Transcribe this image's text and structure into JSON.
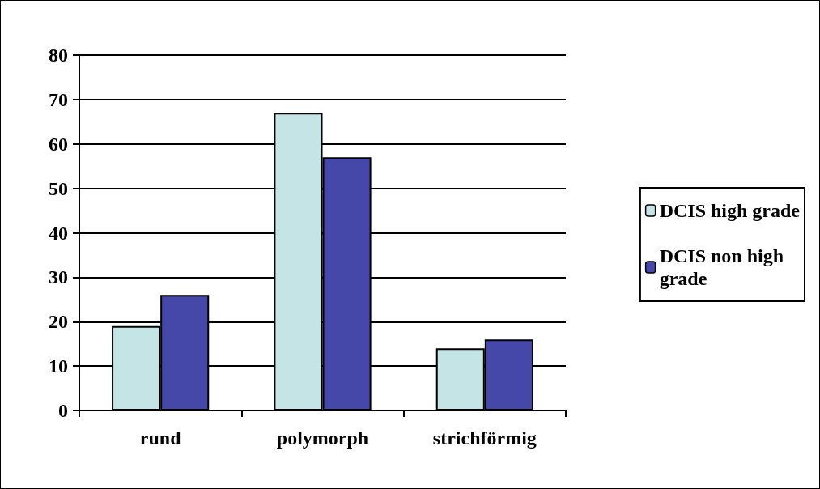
{
  "chart_data": {
    "type": "bar",
    "categories": [
      "rund",
      "polymorph",
      "strichförmig"
    ],
    "series": [
      {
        "name": "DCIS high grade",
        "color": "#c4e4e6",
        "values": [
          19,
          67,
          14
        ]
      },
      {
        "name": "DCIS non high grade",
        "color": "#4547a9",
        "values": [
          26,
          57,
          16
        ]
      }
    ],
    "ylim": [
      0,
      80
    ],
    "yticks": [
      0,
      10,
      20,
      30,
      40,
      50,
      60,
      70,
      80
    ],
    "grid": "y",
    "legend": "right"
  }
}
